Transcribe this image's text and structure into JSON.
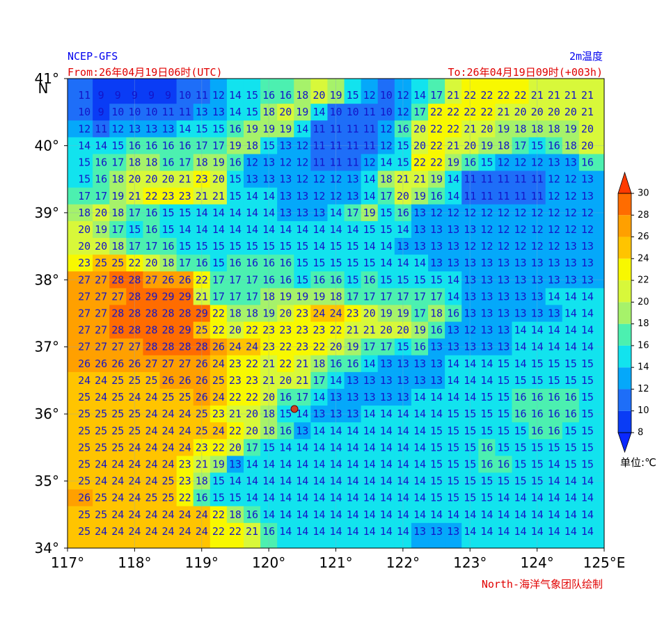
{
  "chart_data": {
    "type": "gridded-map",
    "source": "NCEP-GFS",
    "title": "2m温度",
    "from_text": "From:26年04月19日06时(UTC)",
    "to_text": "To:26年04月19日09时(+003h)",
    "credit": "North-海洋气象团队绘制",
    "y_axis_label": "N",
    "xlim": [
      117,
      125
    ],
    "ylim": [
      34,
      41
    ],
    "xticks": [
      {
        "value": 117,
        "label": "117°"
      },
      {
        "value": 118,
        "label": "118°"
      },
      {
        "value": 119,
        "label": "119°"
      },
      {
        "value": 120,
        "label": "120°"
      },
      {
        "value": 121,
        "label": "121°"
      },
      {
        "value": 122,
        "label": "122°"
      },
      {
        "value": 123,
        "label": "123°"
      },
      {
        "value": 124,
        "label": "124°"
      },
      {
        "value": 125,
        "label": "125°E"
      }
    ],
    "yticks": [
      {
        "value": 34,
        "label": "34°"
      },
      {
        "value": 35,
        "label": "35°"
      },
      {
        "value": 36,
        "label": "36°"
      },
      {
        "value": 37,
        "label": "37°"
      },
      {
        "value": 38,
        "label": "38°"
      },
      {
        "value": 39,
        "label": "39°"
      },
      {
        "value": 40,
        "label": "40°"
      },
      {
        "value": 41,
        "label": "41°"
      }
    ],
    "grid": true,
    "colorbar": {
      "label": "单位:℃",
      "levels": [
        8,
        10,
        12,
        14,
        16,
        18,
        20,
        22,
        24,
        26,
        28,
        30
      ],
      "colors": [
        "#0a3cf5",
        "#1e6ef8",
        "#05a8fa",
        "#12e3ee",
        "#4cf0b0",
        "#a6f26a",
        "#d8f83a",
        "#f8f800",
        "#ffc400",
        "#ffa000",
        "#ff6c00"
      ],
      "under_color": "#0a28ff",
      "over_color": "#ff3a00"
    },
    "values": [
      [
        11,
        9,
        9,
        9,
        9,
        9,
        10,
        11,
        12,
        14,
        15,
        16,
        16,
        18,
        20,
        19,
        15,
        12,
        10,
        12,
        14,
        17,
        21,
        22,
        22,
        22,
        22,
        21,
        21,
        21,
        21
      ],
      [
        10,
        9,
        10,
        10,
        10,
        11,
        11,
        13,
        13,
        14,
        15,
        18,
        20,
        19,
        14,
        10,
        10,
        11,
        10,
        12,
        17,
        22,
        22,
        22,
        22,
        21,
        20,
        20,
        20,
        20,
        21
      ],
      [
        12,
        11,
        12,
        13,
        13,
        13,
        14,
        15,
        15,
        16,
        19,
        19,
        19,
        14,
        11,
        11,
        11,
        11,
        12,
        16,
        20,
        22,
        22,
        21,
        20,
        19,
        18,
        18,
        18,
        19,
        20
      ],
      [
        14,
        14,
        15,
        16,
        16,
        16,
        16,
        17,
        17,
        19,
        18,
        15,
        13,
        12,
        11,
        11,
        11,
        11,
        12,
        15,
        20,
        22,
        21,
        20,
        19,
        18,
        17,
        15,
        16,
        18,
        20
      ],
      [
        15,
        16,
        17,
        18,
        18,
        16,
        17,
        18,
        19,
        16,
        12,
        13,
        12,
        12,
        11,
        11,
        11,
        12,
        14,
        15,
        22,
        22,
        19,
        16,
        15,
        12,
        12,
        12,
        13,
        13,
        16
      ],
      [
        15,
        16,
        18,
        20,
        20,
        20,
        21,
        23,
        20,
        15,
        13,
        13,
        13,
        12,
        12,
        12,
        13,
        14,
        18,
        21,
        21,
        19,
        14,
        11,
        11,
        11,
        11,
        11,
        12,
        12,
        13
      ],
      [
        17,
        17,
        19,
        21,
        22,
        23,
        23,
        21,
        21,
        15,
        14,
        14,
        13,
        13,
        12,
        12,
        13,
        14,
        17,
        20,
        19,
        16,
        14,
        11,
        11,
        11,
        11,
        11,
        12,
        12,
        13
      ],
      [
        18,
        20,
        18,
        17,
        16,
        15,
        15,
        14,
        14,
        14,
        14,
        14,
        13,
        13,
        13,
        14,
        17,
        19,
        15,
        16,
        13,
        12,
        12,
        12,
        12,
        12,
        12,
        12,
        12,
        12,
        12
      ],
      [
        20,
        19,
        17,
        15,
        16,
        15,
        14,
        14,
        14,
        14,
        14,
        14,
        14,
        14,
        14,
        14,
        14,
        15,
        15,
        14,
        13,
        13,
        13,
        13,
        12,
        12,
        12,
        12,
        12,
        12,
        12
      ],
      [
        20,
        20,
        18,
        17,
        17,
        16,
        15,
        15,
        15,
        15,
        15,
        15,
        15,
        15,
        14,
        15,
        15,
        14,
        14,
        13,
        13,
        13,
        13,
        12,
        12,
        12,
        12,
        12,
        12,
        13,
        13
      ],
      [
        23,
        25,
        25,
        22,
        20,
        18,
        17,
        16,
        15,
        16,
        16,
        16,
        16,
        15,
        15,
        15,
        15,
        15,
        14,
        14,
        14,
        13,
        13,
        13,
        13,
        13,
        13,
        13,
        13,
        13,
        13
      ],
      [
        27,
        27,
        28,
        28,
        27,
        26,
        26,
        22,
        17,
        17,
        17,
        16,
        16,
        15,
        16,
        16,
        15,
        16,
        15,
        15,
        15,
        15,
        14,
        13,
        13,
        13,
        13,
        13,
        13,
        13,
        13
      ],
      [
        27,
        27,
        27,
        28,
        29,
        29,
        29,
        21,
        17,
        17,
        17,
        18,
        19,
        19,
        19,
        18,
        17,
        17,
        17,
        17,
        17,
        17,
        14,
        13,
        13,
        13,
        13,
        13,
        14,
        14,
        14
      ],
      [
        27,
        27,
        28,
        28,
        28,
        28,
        28,
        29,
        22,
        18,
        18,
        19,
        20,
        23,
        24,
        24,
        23,
        20,
        19,
        19,
        17,
        18,
        16,
        13,
        13,
        13,
        13,
        13,
        13,
        14,
        14
      ],
      [
        27,
        27,
        28,
        28,
        28,
        28,
        29,
        25,
        22,
        20,
        22,
        23,
        23,
        23,
        23,
        22,
        21,
        21,
        20,
        20,
        19,
        16,
        13,
        12,
        13,
        13,
        14,
        14,
        14,
        14,
        14
      ],
      [
        27,
        27,
        27,
        27,
        28,
        28,
        28,
        28,
        26,
        24,
        24,
        23,
        22,
        23,
        22,
        20,
        19,
        17,
        17,
        15,
        16,
        13,
        13,
        13,
        13,
        13,
        14,
        14,
        14,
        14,
        14
      ],
      [
        26,
        26,
        26,
        26,
        27,
        27,
        27,
        26,
        24,
        23,
        22,
        21,
        22,
        21,
        18,
        16,
        16,
        14,
        13,
        13,
        13,
        13,
        14,
        14,
        14,
        15,
        14,
        15,
        15,
        15,
        15
      ],
      [
        24,
        24,
        25,
        25,
        25,
        26,
        26,
        26,
        25,
        23,
        23,
        21,
        20,
        21,
        17,
        14,
        13,
        13,
        13,
        13,
        13,
        13,
        14,
        14,
        14,
        15,
        15,
        15,
        15,
        15,
        15
      ],
      [
        25,
        24,
        25,
        24,
        24,
        25,
        25,
        26,
        24,
        22,
        22,
        20,
        16,
        17,
        14,
        13,
        13,
        13,
        13,
        13,
        14,
        14,
        14,
        14,
        15,
        15,
        16,
        16,
        16,
        16,
        15
      ],
      [
        25,
        25,
        25,
        25,
        24,
        24,
        24,
        25,
        23,
        21,
        20,
        18,
        15,
        14,
        13,
        13,
        13,
        14,
        14,
        14,
        14,
        14,
        15,
        15,
        15,
        15,
        16,
        16,
        16,
        16,
        15
      ],
      [
        25,
        25,
        25,
        25,
        24,
        24,
        24,
        25,
        24,
        22,
        20,
        18,
        16,
        13,
        14,
        14,
        14,
        14,
        14,
        14,
        14,
        15,
        15,
        15,
        15,
        15,
        15,
        16,
        16,
        15,
        15
      ],
      [
        25,
        25,
        25,
        24,
        24,
        24,
        24,
        23,
        22,
        20,
        17,
        15,
        14,
        14,
        14,
        14,
        14,
        14,
        14,
        14,
        14,
        15,
        15,
        15,
        16,
        15,
        15,
        15,
        15,
        15,
        15
      ],
      [
        25,
        24,
        24,
        24,
        24,
        24,
        23,
        21,
        19,
        13,
        14,
        14,
        14,
        14,
        14,
        14,
        14,
        14,
        14,
        14,
        14,
        15,
        15,
        15,
        16,
        16,
        15,
        15,
        14,
        15,
        15
      ],
      [
        25,
        24,
        24,
        24,
        24,
        25,
        23,
        18,
        15,
        14,
        14,
        14,
        14,
        14,
        14,
        14,
        14,
        14,
        14,
        14,
        14,
        15,
        15,
        15,
        15,
        15,
        15,
        15,
        14,
        14,
        14
      ],
      [
        26,
        25,
        24,
        24,
        25,
        25,
        22,
        16,
        15,
        15,
        14,
        14,
        14,
        14,
        14,
        14,
        14,
        14,
        14,
        14,
        14,
        15,
        15,
        15,
        15,
        14,
        14,
        14,
        14,
        14,
        14
      ],
      [
        25,
        25,
        24,
        24,
        24,
        24,
        24,
        24,
        22,
        18,
        16,
        14,
        14,
        14,
        14,
        14,
        14,
        14,
        14,
        14,
        14,
        14,
        14,
        14,
        14,
        14,
        14,
        14,
        14,
        14,
        14
      ],
      [
        25,
        24,
        24,
        24,
        24,
        24,
        24,
        24,
        22,
        22,
        21,
        16,
        14,
        14,
        14,
        14,
        14,
        14,
        14,
        14,
        13,
        13,
        13,
        14,
        14,
        14,
        14,
        14,
        14,
        14,
        14
      ]
    ]
  }
}
